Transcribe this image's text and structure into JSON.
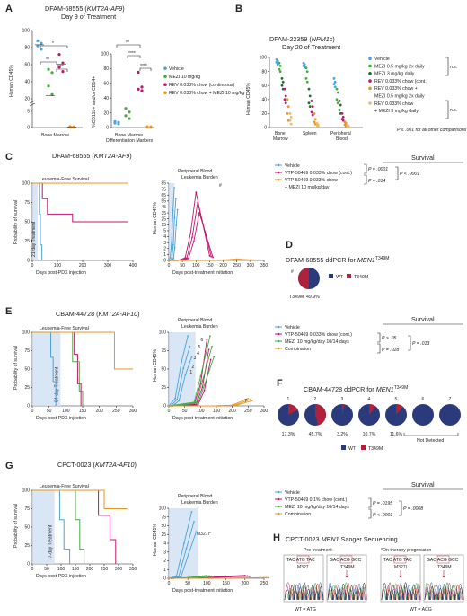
{
  "panel_letters": [
    "A",
    "B",
    "C",
    "D",
    "E",
    "F",
    "G",
    "H"
  ],
  "A": {
    "title1": "DFAM-68555 (",
    "title_gene": "KMT2A-AF9",
    "title2": ")",
    "subtitle": "Day 9 of Treatment",
    "left_ylabel": "Human CD45%",
    "left_yticks": [
      "100",
      "80",
      "60",
      "40",
      "20",
      "5",
      "0"
    ],
    "left_xlabel": "Bone Marrow",
    "right_ylabel": "%CD11b+ and/or CD14+",
    "right_yticks": [
      "100",
      "80",
      "60",
      "40",
      "20",
      "0"
    ],
    "right_xlabel1": "Bone Marrow",
    "right_xlabel2": "Differentiation Markers",
    "sig": [
      "*",
      "**",
      "****",
      "**",
      "****",
      "****"
    ],
    "legend": [
      "Vehicle",
      "MEZI 10 mg/kg",
      "REV 0.033% chow (continuous)",
      "REV 0.033% chow + MEZI 10 mg/kg"
    ]
  },
  "B": {
    "title1": "DFAM-22359 (",
    "title_gene": "NPM1c",
    "title2": ")",
    "subtitle": "Day 20 of Treatment",
    "ylabel": "Human CD45%",
    "yticks": [
      "100",
      "80",
      "60",
      "40",
      "20",
      "0"
    ],
    "xcats": [
      "Bone",
      "Marrow",
      "Spleen",
      "Peripheral",
      "Blood"
    ],
    "legend": [
      "Vehicle",
      "MEZI 0.5 mg/kg 2x daily",
      "MEZI 3 mg/kg daily",
      "REV 0.033% chow (cont.)",
      "REV 0.033% chow +",
      "MEZI 0.5 mg/kg 2x daily",
      "REV 0.033% chow",
      "+ MEZI 3 mg/kg daily"
    ],
    "ns1": "n.s.",
    "ns2": "n.s.",
    "note": "P ≤ .001 for all other comparisons"
  },
  "C": {
    "title1": "DFAM-68555 (",
    "title_gene": "KMT2A-AF9",
    "title2": ")",
    "km_title": "Leukemia-Free Survival",
    "km_ylabel": "Probability of survival",
    "km_yticks": [
      "100",
      "75",
      "50",
      "25",
      "0"
    ],
    "km_xticks": [
      "0",
      "100",
      "200",
      "300",
      "400"
    ],
    "km_xlabel": "Days post-PDX injection",
    "treatment": "21-day Treatment",
    "pb_title1": "Peripheral Blood",
    "pb_title2": "Leukemia Burden",
    "pb_ylabel": "Human CD45%",
    "pb_yticks": [
      "85",
      "75",
      "65",
      "55",
      "45",
      "35",
      "25",
      "15",
      "5",
      "4",
      "3",
      "2",
      "1",
      "0"
    ],
    "pb_xticks": [
      "0",
      "50",
      "100",
      "150",
      "200",
      "250",
      "300",
      "350"
    ],
    "pb_xlabel": "Days post-treatment initiation",
    "pb_mark": "#",
    "survival_header": "Survival",
    "legend": [
      "Vehicle",
      "VTP-50469 0.033% chow (cont.)",
      "VTP-50469 0.033% chow",
      "+ MEZI 10 mg/kg/day"
    ],
    "p": [
      "P = .0001",
      "P = .014",
      "P < .0001"
    ]
  },
  "D": {
    "title1": "DFAM-68555 ddPCR for ",
    "title_gene": "MEN1",
    "title_sup": "T349M",
    "mark": "#",
    "legend": [
      "WT",
      "T349M"
    ],
    "caption": "T349M: 49.9%",
    "colors": {
      "wt": "#2b3a7a",
      "mut": "#b0213b"
    }
  },
  "E": {
    "title1": "CBAM-44728 (",
    "title_gene": "KMT2A-AF10",
    "title2": ")",
    "km_title": "Leukemia-Free Survival",
    "km_ylabel": "Probability of survival",
    "km_yticks": [
      "100",
      "75",
      "50",
      "25",
      "0"
    ],
    "km_xticks": [
      "0",
      "50",
      "100",
      "150",
      "200",
      "250",
      "300"
    ],
    "km_xlabel": "Days post-PDX injection",
    "treatment": "84-day Treatment",
    "pb_title1": "Peripheral Blood",
    "pb_title2": "Leukemia Burden",
    "pb_ylabel": "Human CD45%",
    "pb_yticks": [
      "100",
      "75",
      "50",
      "25",
      "0"
    ],
    "pb_xticks": [
      "0",
      "50",
      "100",
      "150",
      "200",
      "250",
      "300"
    ],
    "pb_xlabel": "Days post-treatment initiation",
    "pb_nums": [
      "1",
      "2",
      "3",
      "4",
      "5",
      "6",
      "7"
    ],
    "survival_header": "Survival",
    "legend": [
      "Vehicle",
      "VTP-50469 0.033% chow (cont.)",
      "MEZI 10 mg/kg/day 10/14 days",
      "Combination"
    ],
    "p": [
      "P > .05",
      "P = .028",
      "P = .013"
    ]
  },
  "F": {
    "title1": "CBAM-44728 ddPCR for ",
    "title_gene": "MEN1",
    "title_sup": "T349M",
    "pie_labels": [
      "1",
      "2",
      "3",
      "4",
      "5",
      "6",
      "7"
    ],
    "percents": [
      "17.3%",
      "45.7%",
      "3.2%",
      "10.7%",
      "11.6%"
    ],
    "not_detected": "Not Detected",
    "legend": [
      "WT",
      "T349M"
    ]
  },
  "G": {
    "title1": "CPCT-0023 (",
    "title_gene": "KMT2A-AF10",
    "title2": ")",
    "km_title": "Leukemia-Free Survival",
    "km_ylabel": "Probability of survival",
    "km_yticks": [
      "100",
      "75",
      "50",
      "25",
      "0"
    ],
    "km_xticks": [
      "0",
      "50",
      "100",
      "150",
      "200",
      "250",
      "300",
      "350"
    ],
    "km_xlabel": "Days post-PDX injection",
    "treatment": "77-day Treatment",
    "pb_title1": "Peripheral Blood",
    "pb_title2": "Leukemia Burden",
    "pb_ylabel": "Human CD45%",
    "pb_yticks": [
      "100",
      "75",
      "50",
      "25",
      "4",
      "3",
      "2",
      "1",
      "0"
    ],
    "pb_xticks": [
      "0",
      "50",
      "100",
      "150",
      "200",
      "250"
    ],
    "pb_xlabel": "Days post-treatment initiation",
    "pb_mark": "M327I*",
    "survival_header": "Survival",
    "legend": [
      "Vehicle",
      "VTP-50469 0.1% chow (cont.)",
      "MEZI 10 mg/kg/day 10/14 days",
      "Combination"
    ],
    "p": [
      "P = .0195",
      "P < .0001",
      "P = .0008"
    ]
  },
  "H": {
    "title1": "CPCT-0023 ",
    "title_gene": "MEN1",
    "title2": " Sanger Sequencing",
    "pre": "Pre-treatment",
    "on": "*On therapy progression",
    "seq1": "TAC ATG TAC",
    "seq2": "GAC ACG GCC",
    "m1": "M327",
    "m2": "T349M",
    "m3": "M327I",
    "m4": "T349M",
    "wt1": "WT = ATG",
    "wt2": "WT = ACG"
  },
  "colors": {
    "vehicle": "#4aa3d9",
    "mezi": "#49a942",
    "mezi2": "#1f6e2a",
    "rev": "#c0166b",
    "combo": "#e89624",
    "combo2": "#f3b865",
    "shade": "#cfe0f3",
    "wt": "#2b3a7a",
    "mut": "#b0213b"
  },
  "chart_data": [
    {
      "type": "scatter",
      "panel": "A-left",
      "title": "DFAM-68555 (KMT2A-AF9) Day 9 of Treatment",
      "ylabel": "Human CD45%",
      "ylim": [
        0,
        100
      ],
      "categories": [
        "Bone Marrow"
      ],
      "series": [
        {
          "name": "Vehicle",
          "values": [
            88,
            85,
            82,
            78
          ]
        },
        {
          "name": "MEZI 10 mg/kg",
          "values": [
            35,
            25,
            18,
            17
          ]
        },
        {
          "name": "REV 0.033% chow (continuous)",
          "values": [
            72,
            62,
            57,
            52
          ]
        },
        {
          "name": "REV 0.033% chow + MEZI 10 mg/kg",
          "values": [
            0.3,
            0.2,
            0.2,
            0.1
          ]
        }
      ]
    },
    {
      "type": "scatter",
      "panel": "A-right",
      "ylabel": "%CD11b+ and/or CD14+",
      "ylim": [
        0,
        100
      ],
      "categories": [
        "Bone Marrow Differentiation Markers"
      ],
      "series": [
        {
          "name": "Vehicle",
          "values": [
            8,
            7,
            6,
            5
          ]
        },
        {
          "name": "MEZI 10 mg/kg",
          "values": [
            26,
            21,
            16,
            12
          ]
        },
        {
          "name": "REV 0.033% chow (continuous)",
          "values": [
            75,
            55,
            52,
            50
          ]
        },
        {
          "name": "REV 0.033% chow + MEZI 10 mg/kg",
          "values": [
            1,
            1,
            0.5,
            0.5
          ]
        }
      ]
    },
    {
      "type": "scatter",
      "panel": "B",
      "title": "DFAM-22359 (NPM1c) Day 20 of Treatment",
      "ylabel": "Human CD45%",
      "ylim": [
        0,
        100
      ],
      "categories": [
        "Bone Marrow",
        "Spleen",
        "Peripheral Blood"
      ],
      "series": [
        {
          "name": "Vehicle",
          "values": [
            [
              97,
              95,
              93,
              90
            ],
            [
              92,
              90,
              88,
              86
            ],
            [
              70,
              65,
              62,
              58
            ]
          ]
        },
        {
          "name": "MEZI 0.5 mg/kg 2x daily",
          "values": [
            [
              92,
              88,
              83,
              80
            ],
            [
              85,
              80,
              70,
              65
            ],
            [
              55,
              50,
              40,
              35
            ]
          ]
        },
        {
          "name": "MEZI 3 mg/kg daily",
          "values": [
            [
              70,
              65,
              60,
              55
            ],
            [
              55,
              45,
              35,
              30
            ],
            [
              38,
              32,
              25,
              20
            ]
          ]
        },
        {
          "name": "REV 0.033% chow (cont.)",
          "values": [
            [
              55,
              45,
              40,
              35
            ],
            [
              38,
              30,
              22,
              18
            ],
            [
              20,
              15,
              12,
              10
            ]
          ]
        },
        {
          "name": "REV 0.033% chow + MEZI 0.5 mg/kg 2x daily",
          "values": [
            [
              40,
              30,
              20,
              10
            ],
            [
              20,
              12,
              8,
              5
            ],
            [
              8,
              6,
              4,
              2
            ]
          ]
        },
        {
          "name": "REV 0.033% chow + MEZI 3 mg/kg daily",
          "values": [
            [
              20,
              15,
              10,
              5
            ],
            [
              6,
              4,
              3,
              2
            ],
            [
              3,
              2,
              1,
              1
            ]
          ]
        }
      ]
    },
    {
      "type": "line",
      "panel": "C-survival",
      "title": "Leukemia-Free Survival",
      "xlabel": "Days post-PDX injection",
      "ylabel": "Probability of survival",
      "xlim": [
        0,
        400
      ],
      "ylim": [
        0,
        100
      ],
      "series": [
        {
          "name": "Vehicle",
          "x": [
            0,
            28,
            28,
            32,
            32,
            38,
            38
          ],
          "y": [
            100,
            100,
            60,
            60,
            20,
            20,
            0
          ]
        },
        {
          "name": "VTP-50469 0.033% chow (cont.)",
          "x": [
            0,
            40,
            40,
            60,
            60,
            160,
            160,
            380
          ],
          "y": [
            100,
            100,
            80,
            80,
            60,
            60,
            50,
            50
          ]
        },
        {
          "name": "VTP-50469 0.033% chow + MEZI 10 mg/kg/day",
          "x": [
            0,
            380
          ],
          "y": [
            100,
            100
          ]
        }
      ]
    },
    {
      "type": "line",
      "panel": "C-blood",
      "title": "Peripheral Blood Leukemia Burden",
      "xlabel": "Days post-treatment initiation",
      "ylabel": "Human CD45%",
      "xlim": [
        0,
        350
      ],
      "ylim": [
        0,
        85
      ],
      "series": [
        {
          "name": "Vehicle",
          "x": [
            0,
            5,
            10,
            15,
            20
          ],
          "y": [
            0,
            3,
            20,
            55,
            80
          ]
        },
        {
          "name": "VTP-50469 0.033% chow (cont.)",
          "x": [
            0,
            20,
            40,
            60,
            80,
            100,
            150
          ],
          "y": [
            0,
            0,
            0.5,
            3,
            30,
            75,
            5
          ]
        },
        {
          "name": "VTP-50469 0.033% chow + MEZI 10 mg/kg/day",
          "x": [
            0,
            50,
            100,
            150,
            200,
            250,
            300
          ],
          "y": [
            0,
            0,
            0.2,
            0.3,
            0.5,
            1.5,
            0.5
          ]
        }
      ]
    },
    {
      "type": "pie",
      "panel": "D",
      "title": "DFAM-68555 ddPCR for MEN1 T349M",
      "categories": [
        "WT",
        "T349M"
      ],
      "values": [
        50.1,
        49.9
      ]
    },
    {
      "type": "line",
      "panel": "E-survival",
      "title": "Leukemia-Free Survival",
      "xlabel": "Days post-PDX injection",
      "ylabel": "Probability of survival",
      "xlim": [
        0,
        300
      ],
      "ylim": [
        0,
        100
      ],
      "series": [
        {
          "name": "Vehicle",
          "x": [
            0,
            55,
            55,
            62,
            62,
            70,
            70
          ],
          "y": [
            100,
            100,
            66,
            66,
            33,
            33,
            0
          ]
        },
        {
          "name": "VTP-50469 0.033% chow (cont.)",
          "x": [
            0,
            125,
            125,
            135,
            135,
            145,
            145
          ],
          "y": [
            100,
            100,
            70,
            70,
            30,
            30,
            0
          ]
        },
        {
          "name": "MEZI 10 mg/kg/day 10/14 days",
          "x": [
            0,
            120,
            120,
            140,
            140,
            150,
            150
          ],
          "y": [
            100,
            100,
            60,
            60,
            20,
            20,
            0
          ]
        },
        {
          "name": "Combination",
          "x": [
            0,
            245,
            245,
            300
          ],
          "y": [
            100,
            100,
            50,
            50
          ]
        }
      ]
    },
    {
      "type": "line",
      "panel": "E-blood",
      "title": "Peripheral Blood Leukemia Burden",
      "xlabel": "Days post-treatment initiation",
      "ylabel": "Human CD45%",
      "xlim": [
        0,
        300
      ],
      "ylim": [
        0,
        100
      ],
      "series": [
        {
          "name": "Vehicle",
          "x": [
            0,
            20,
            40,
            60
          ],
          "y": [
            0,
            10,
            60,
            95
          ]
        },
        {
          "name": "VTP-50469 0.033% chow (cont.)",
          "x": [
            0,
            80,
            100,
            120
          ],
          "y": [
            0,
            2,
            30,
            90
          ]
        },
        {
          "name": "MEZI 10 mg/kg/day 10/14 days",
          "x": [
            0,
            80,
            100,
            130
          ],
          "y": [
            0,
            5,
            40,
            95
          ]
        },
        {
          "name": "Combination",
          "x": [
            0,
            150,
            200,
            250
          ],
          "y": [
            0,
            0,
            1,
            10
          ]
        }
      ]
    },
    {
      "type": "pie",
      "panel": "F",
      "title": "CBAM-44728 ddPCR for MEN1 T349M",
      "categories": [
        "1",
        "2",
        "3",
        "4",
        "5",
        "6",
        "7"
      ],
      "values": [
        17.3,
        45.7,
        3.2,
        10.7,
        11.6,
        0,
        0
      ]
    },
    {
      "type": "line",
      "panel": "G-survival",
      "title": "Leukemia-Free Survival",
      "xlabel": "Days post-PDX injection",
      "ylabel": "Probability of survival",
      "xlim": [
        0,
        350
      ],
      "ylim": [
        0,
        100
      ],
      "series": [
        {
          "name": "Vehicle",
          "x": [
            0,
            95,
            95,
            110,
            110,
            130,
            130
          ],
          "y": [
            100,
            100,
            60,
            60,
            20,
            20,
            0
          ]
        },
        {
          "name": "VTP-50469 0.1% chow (cont.)",
          "x": [
            0,
            230,
            230,
            270,
            270,
            290,
            290
          ],
          "y": [
            100,
            100,
            66,
            66,
            33,
            33,
            0
          ]
        },
        {
          "name": "MEZI 10 mg/kg/day 10/14 days",
          "x": [
            0,
            150,
            150,
            165,
            165,
            180,
            180
          ],
          "y": [
            100,
            100,
            60,
            60,
            20,
            20,
            0
          ]
        },
        {
          "name": "Combination",
          "x": [
            0,
            250,
            250,
            330
          ],
          "y": [
            100,
            100,
            75,
            75
          ]
        }
      ]
    },
    {
      "type": "line",
      "panel": "G-blood",
      "title": "Peripheral Blood Leukemia Burden",
      "xlabel": "Days post-treatment initiation",
      "ylabel": "Human CD45%",
      "xlim": [
        0,
        250
      ],
      "ylim": [
        0,
        100
      ],
      "series": [
        {
          "name": "Vehicle",
          "x": [
            0,
            20,
            40,
            60
          ],
          "y": [
            0,
            3,
            50,
            95
          ]
        },
        {
          "name": "VTP-50469 0.1% chow (cont.)",
          "x": [
            0,
            100,
            150,
            200
          ],
          "y": [
            0,
            1,
            3,
            4
          ]
        },
        {
          "name": "MEZI 10 mg/kg/day 10/14 days",
          "x": [
            0,
            50,
            80,
            100
          ],
          "y": [
            0,
            1,
            3,
            4
          ]
        },
        {
          "name": "Combination",
          "x": [
            0,
            100,
            200,
            250
          ],
          "y": [
            0,
            0,
            0.5,
            1
          ]
        }
      ]
    }
  ]
}
